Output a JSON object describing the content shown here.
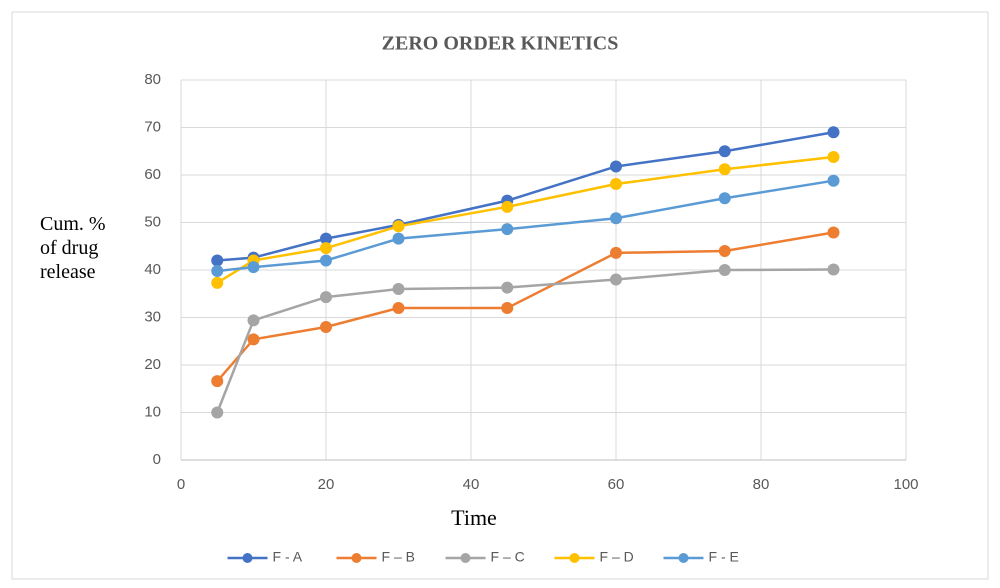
{
  "chart_data": {
    "type": "line",
    "title": "ZERO ORDER KINETICS",
    "xlabel": "Time",
    "ylabel": "Cum. % of drug release",
    "x": [
      5,
      10,
      20,
      30,
      45,
      60,
      75,
      90
    ],
    "series": [
      {
        "name": "F - A",
        "color": "#4472c4",
        "values": [
          42,
          42.6,
          46.6,
          49.5,
          54.6,
          61.8,
          65,
          69
        ]
      },
      {
        "name": "F – B",
        "color": "#ed7d31",
        "values": [
          16.6,
          25.4,
          28,
          32,
          32,
          43.6,
          44,
          47.9
        ]
      },
      {
        "name": "F – C",
        "color": "#a5a5a5",
        "values": [
          10,
          29.4,
          34.3,
          36,
          36.3,
          38,
          40,
          40.1
        ]
      },
      {
        "name": "F – D",
        "color": "#ffc000",
        "values": [
          37.3,
          42,
          44.6,
          49.2,
          53.3,
          58.1,
          61.2,
          63.8
        ]
      },
      {
        "name": "F - E",
        "color": "#5b9bd5",
        "values": [
          39.8,
          40.6,
          42,
          46.6,
          48.6,
          50.9,
          55.1,
          58.8
        ]
      }
    ],
    "xlim": [
      0,
      100
    ],
    "xticks": [
      0,
      20,
      40,
      60,
      80,
      100
    ],
    "ylim": [
      0,
      80
    ],
    "yticks": [
      0,
      10,
      20,
      30,
      40,
      50,
      60,
      70,
      80
    ],
    "grid": true,
    "legend": "bottom"
  }
}
